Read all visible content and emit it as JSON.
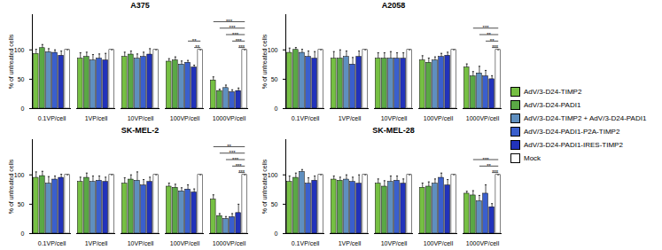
{
  "chart_data": [
    {
      "type": "bar",
      "title": "A375",
      "ylabel": "% of untreated cells",
      "categories": [
        "0.1VP/cell",
        "1VP/cell",
        "10VP/cell",
        "100VP/cell",
        "1000VP/cell"
      ],
      "ylim": [
        0,
        160
      ],
      "yticks": [
        0,
        50,
        100
      ],
      "legend": "right",
      "series": [
        {
          "name": "AdV/3-D24-TIMP2",
          "color": "#76c043",
          "values": [
            93,
            85,
            88,
            80,
            48
          ],
          "errors": [
            8,
            10,
            8,
            5,
            6
          ]
        },
        {
          "name": "AdV/3-D24-PADI1",
          "color": "#5aa845",
          "values": [
            103,
            88,
            92,
            82,
            30
          ],
          "errors": [
            6,
            8,
            6,
            6,
            3
          ]
        },
        {
          "name": "AdV/3-D24-TIMP2 + AdV/3-D24-PADI1",
          "color": "#5f8fbf",
          "values": [
            96,
            82,
            85,
            75,
            35
          ],
          "errors": [
            6,
            10,
            8,
            6,
            5
          ]
        },
        {
          "name": "AdV/3-D24-PADI1-P2A-TIMP2",
          "color": "#3a5fcd",
          "values": [
            95,
            85,
            88,
            78,
            28
          ],
          "errors": [
            5,
            8,
            8,
            4,
            4
          ]
        },
        {
          "name": "AdV/3-D24-PADI1-IRES-TIMP2",
          "color": "#2233bb",
          "values": [
            90,
            82,
            92,
            70,
            30
          ],
          "errors": [
            8,
            12,
            10,
            4,
            5
          ]
        },
        {
          "name": "Mock",
          "color": "#ffffff",
          "values": [
            100,
            100,
            100,
            100,
            100
          ],
          "errors": [
            0,
            0,
            0,
            0,
            0
          ]
        }
      ],
      "significance": [
        {
          "category": "100VP/cell",
          "series": "AdV/3-D24-PADI1-P2A-TIMP2",
          "reference": "Mock",
          "label": "**"
        },
        {
          "category": "100VP/cell",
          "series": "AdV/3-D24-PADI1-IRES-TIMP2",
          "reference": "Mock",
          "label": "**"
        },
        {
          "category": "1000VP/cell",
          "series": "AdV/3-D24-TIMP2",
          "reference": "Mock",
          "label": "***"
        },
        {
          "category": "1000VP/cell",
          "series": "AdV/3-D24-PADI1",
          "reference": "Mock",
          "label": "***"
        },
        {
          "category": "1000VP/cell",
          "series": "AdV/3-D24-TIMP2 + AdV/3-D24-PADI1",
          "reference": "Mock",
          "label": "***"
        },
        {
          "category": "1000VP/cell",
          "series": "AdV/3-D24-PADI1-P2A-TIMP2",
          "reference": "Mock",
          "label": "***"
        },
        {
          "category": "1000VP/cell",
          "series": "AdV/3-D24-PADI1-IRES-TIMP2",
          "reference": "Mock",
          "label": "***"
        }
      ]
    },
    {
      "type": "bar",
      "title": "A2058",
      "ylabel": "% of untreated cells",
      "categories": [
        "0.1VP/cell",
        "1VP/cell",
        "10VP/cell",
        "100VP/cell",
        "1000VP/cell"
      ],
      "ylim": [
        0,
        160
      ],
      "yticks": [
        0,
        50,
        100
      ],
      "legend": "right",
      "series": [
        {
          "name": "AdV/3-D24-TIMP2",
          "color": "#76c043",
          "values": [
            95,
            85,
            85,
            82,
            70
          ],
          "errors": [
            8,
            12,
            10,
            8,
            6
          ]
        },
        {
          "name": "AdV/3-D24-PADI1",
          "color": "#5aa845",
          "values": [
            100,
            85,
            85,
            78,
            55
          ],
          "errors": [
            4,
            15,
            10,
            8,
            8
          ]
        },
        {
          "name": "AdV/3-D24-TIMP2 + AdV/3-D24-PADI1",
          "color": "#5f8fbf",
          "values": [
            95,
            88,
            85,
            82,
            60
          ],
          "errors": [
            6,
            10,
            12,
            6,
            12
          ]
        },
        {
          "name": "AdV/3-D24-PADI1-P2A-TIMP2",
          "color": "#3a5fcd",
          "values": [
            88,
            75,
            85,
            88,
            55
          ],
          "errors": [
            10,
            12,
            10,
            6,
            10
          ]
        },
        {
          "name": "AdV/3-D24-PADI1-IRES-TIMP2",
          "color": "#2233bb",
          "values": [
            85,
            88,
            85,
            90,
            50
          ],
          "errors": [
            12,
            10,
            10,
            6,
            6
          ]
        },
        {
          "name": "Mock",
          "color": "#ffffff",
          "values": [
            100,
            100,
            100,
            100,
            100
          ],
          "errors": [
            0,
            0,
            0,
            0,
            0
          ]
        }
      ],
      "significance": [
        {
          "category": "1000VP/cell",
          "series": "AdV/3-D24-PADI1",
          "reference": "Mock",
          "label": "***"
        },
        {
          "category": "1000VP/cell",
          "series": "AdV/3-D24-TIMP2 + AdV/3-D24-PADI1",
          "reference": "Mock",
          "label": "**"
        },
        {
          "category": "1000VP/cell",
          "series": "AdV/3-D24-PADI1-P2A-TIMP2",
          "reference": "Mock",
          "label": "**"
        },
        {
          "category": "1000VP/cell",
          "series": "AdV/3-D24-PADI1-IRES-TIMP2",
          "reference": "Mock",
          "label": "***"
        }
      ]
    },
    {
      "type": "bar",
      "title": "SK-MEL-2",
      "ylabel": "% of untreated cells",
      "categories": [
        "0.1VP/cell",
        "1VP/cell",
        "10VP/cell",
        "100VP/cell",
        "1000VP/cell"
      ],
      "ylim": [
        0,
        160
      ],
      "yticks": [
        0,
        50,
        100
      ],
      "legend": "right",
      "series": [
        {
          "name": "AdV/3-D24-TIMP2",
          "color": "#76c043",
          "values": [
            95,
            88,
            85,
            80,
            58
          ],
          "errors": [
            10,
            8,
            10,
            6,
            8
          ]
        },
        {
          "name": "AdV/3-D24-PADI1",
          "color": "#5aa845",
          "values": [
            98,
            95,
            92,
            78,
            30
          ],
          "errors": [
            8,
            8,
            8,
            6,
            4
          ]
        },
        {
          "name": "AdV/3-D24-TIMP2 + AdV/3-D24-PADI1",
          "color": "#5f8fbf",
          "values": [
            85,
            88,
            90,
            72,
            25
          ],
          "errors": [
            12,
            10,
            15,
            6,
            4
          ]
        },
        {
          "name": "AdV/3-D24-PADI1-P2A-TIMP2",
          "color": "#3a5fcd",
          "values": [
            92,
            90,
            82,
            75,
            28
          ],
          "errors": [
            6,
            8,
            10,
            8,
            6
          ]
        },
        {
          "name": "AdV/3-D24-PADI1-IRES-TIMP2",
          "color": "#2233bb",
          "values": [
            95,
            88,
            88,
            70,
            35
          ],
          "errors": [
            6,
            8,
            8,
            6,
            15
          ]
        },
        {
          "name": "Mock",
          "color": "#ffffff",
          "values": [
            100,
            100,
            100,
            100,
            100
          ],
          "errors": [
            0,
            0,
            0,
            0,
            0
          ]
        }
      ],
      "significance": [
        {
          "category": "1000VP/cell",
          "series": "AdV/3-D24-TIMP2",
          "reference": "Mock",
          "label": "**"
        },
        {
          "category": "1000VP/cell",
          "series": "AdV/3-D24-PADI1",
          "reference": "Mock",
          "label": "***"
        },
        {
          "category": "1000VP/cell",
          "series": "AdV/3-D24-TIMP2 + AdV/3-D24-PADI1",
          "reference": "Mock",
          "label": "***"
        },
        {
          "category": "1000VP/cell",
          "series": "AdV/3-D24-PADI1-P2A-TIMP2",
          "reference": "Mock",
          "label": "***"
        },
        {
          "category": "1000VP/cell",
          "series": "AdV/3-D24-PADI1-IRES-TIMP2",
          "reference": "Mock",
          "label": "***"
        }
      ]
    },
    {
      "type": "bar",
      "title": "SK-MEL-28",
      "ylabel": "% of untreated cells",
      "categories": [
        "0.1VP/cell",
        "1VP/cell",
        "10VP/cell",
        "100VP/cell",
        "1000VP/cell"
      ],
      "ylim": [
        0,
        160
      ],
      "yticks": [
        0,
        50,
        100
      ],
      "legend": "right",
      "series": [
        {
          "name": "AdV/3-D24-TIMP2",
          "color": "#76c043",
          "values": [
            88,
            92,
            85,
            78,
            68
          ],
          "errors": [
            10,
            6,
            8,
            8,
            4
          ]
        },
        {
          "name": "AdV/3-D24-PADI1",
          "color": "#5aa845",
          "values": [
            95,
            90,
            80,
            80,
            65
          ],
          "errors": [
            8,
            6,
            10,
            8,
            8
          ]
        },
        {
          "name": "AdV/3-D24-TIMP2 + AdV/3-D24-PADI1",
          "color": "#5f8fbf",
          "values": [
            105,
            92,
            88,
            85,
            55
          ],
          "errors": [
            4,
            8,
            10,
            8,
            10
          ]
        },
        {
          "name": "AdV/3-D24-PADI1-P2A-TIMP2",
          "color": "#3a5fcd",
          "values": [
            85,
            88,
            90,
            95,
            68
          ],
          "errors": [
            10,
            8,
            8,
            8,
            15
          ]
        },
        {
          "name": "AdV/3-D24-PADI1-IRES-TIMP2",
          "color": "#2233bb",
          "values": [
            90,
            85,
            85,
            82,
            45
          ],
          "errors": [
            8,
            15,
            8,
            10,
            6
          ]
        },
        {
          "name": "Mock",
          "color": "#ffffff",
          "values": [
            100,
            100,
            100,
            100,
            100
          ],
          "errors": [
            0,
            0,
            0,
            0,
            0
          ]
        }
      ],
      "significance": [
        {
          "category": "1000VP/cell",
          "series": "AdV/3-D24-PADI1",
          "reference": "Mock",
          "label": "***"
        },
        {
          "category": "1000VP/cell",
          "series": "AdV/3-D24-TIMP2 + AdV/3-D24-PADI1",
          "reference": "Mock",
          "label": "**"
        },
        {
          "category": "1000VP/cell",
          "series": "AdV/3-D24-PADI1-IRES-TIMP2",
          "reference": "Mock",
          "label": "***"
        }
      ]
    }
  ]
}
